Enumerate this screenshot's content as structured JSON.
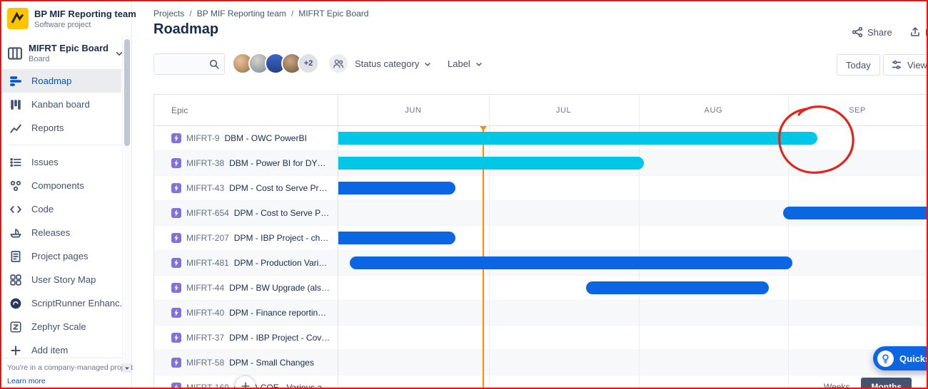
{
  "sidebar": {
    "project_name": "BP MIF Reporting team",
    "project_type": "Software project",
    "board_name": "MIFRT Epic Board",
    "board_type": "Board",
    "nav_items": [
      {
        "label": "Roadmap"
      },
      {
        "label": "Kanban board"
      },
      {
        "label": "Reports"
      },
      {
        "label": "Issues"
      },
      {
        "label": "Components"
      },
      {
        "label": "Code"
      },
      {
        "label": "Releases"
      },
      {
        "label": "Project pages"
      },
      {
        "label": "User Story Map"
      },
      {
        "label": "ScriptRunner Enhanc..."
      },
      {
        "label": "Zephyr Scale"
      },
      {
        "label": "Add item"
      }
    ],
    "footer_note": "You're in a company-managed project",
    "footer_link": "Learn more"
  },
  "header": {
    "breadcrumbs": [
      "Projects",
      "BP MIF Reporting team",
      "MIFRT Epic Board"
    ],
    "crumb_sep": "/",
    "title": "Roadmap",
    "share_label": "Share",
    "export_label": "E"
  },
  "toolbar": {
    "avatar_more": "+2",
    "status_filter_label": "Status category",
    "label_filter_label": "Label",
    "today_label": "Today",
    "view_settings_label": "View se"
  },
  "chart": {
    "epic_header": "Epic",
    "months": [
      "JUN",
      "JUL",
      "AUG",
      "SEP"
    ],
    "colors": {
      "cyan": "#00C7E6",
      "blue": "#0B66E4"
    },
    "today_pct": 24.46,
    "rows": [
      {
        "key": "MIFRT-9",
        "summary": "DBM - OWC PowerBI",
        "bar": {
          "start": 0,
          "end": 81.45,
          "color": "cyan"
        }
      },
      {
        "key": "MIFRT-38",
        "summary": "DBM - Power BI for DYN PUR ...",
        "bar": {
          "start": 0,
          "end": 52.05,
          "color": "cyan"
        }
      },
      {
        "key": "MIFRT-43",
        "summary": "DPM - Cost to Serve Project (...",
        "bar": {
          "start": 0,
          "end": 20.0,
          "color": "blue"
        }
      },
      {
        "key": "MIFRT-654",
        "summary": "DPM - Cost to Serve Project ...",
        "bar": {
          "start": 75.66,
          "end": 100,
          "color": "blue"
        }
      },
      {
        "key": "MIFRT-207",
        "summary": "DPM - IBP Project - changes",
        "bar": {
          "start": 0,
          "end": 20.0,
          "color": "blue"
        }
      },
      {
        "key": "MIFRT-481",
        "summary": "DPM - Production Variances",
        "bar": {
          "start": 2.05,
          "end": 77.23,
          "color": "blue"
        }
      },
      {
        "key": "MIFRT-44",
        "summary": "DPM - BW Upgrade (also DBM)",
        "bar": {
          "start": 42.17,
          "end": 73.25,
          "color": "blue"
        }
      },
      {
        "key": "MIFRT-40",
        "summary": "DPM - Finance reporting reali..."
      },
      {
        "key": "MIFRT-37",
        "summary": "DPM - IBP Project - Coverage..."
      },
      {
        "key": "MIFRT-58",
        "summary": "DPM - Small Changes"
      },
      {
        "key": "MIFRT-169",
        "summary": "GF TA COE - Various a..."
      }
    ]
  },
  "widgets": {
    "quickstart_label": "Quicks",
    "weeks_label": "Weeks",
    "months_label": "Months",
    "add_fab_label": "+",
    "annotation_color": "#E0261C"
  }
}
